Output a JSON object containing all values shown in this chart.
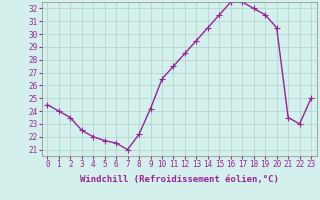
{
  "x": [
    0,
    1,
    2,
    3,
    4,
    5,
    6,
    7,
    8,
    9,
    10,
    11,
    12,
    13,
    14,
    15,
    16,
    17,
    18,
    19,
    20,
    21,
    22,
    23
  ],
  "y": [
    24.5,
    24.0,
    23.5,
    22.5,
    22.0,
    21.7,
    21.5,
    21.0,
    22.2,
    24.2,
    26.5,
    27.5,
    28.5,
    29.5,
    30.5,
    31.5,
    32.5,
    32.5,
    32.0,
    31.5,
    30.5,
    23.5,
    23.0,
    25.0
  ],
  "line_color": "#992299",
  "marker": "+",
  "marker_size": 4,
  "linewidth": 1.0,
  "xlabel": "Windchill (Refroidissement éolien,°C)",
  "xlabel_fontsize": 6.5,
  "ylim": [
    20.5,
    32.5
  ],
  "xlim": [
    -0.5,
    23.5
  ],
  "yticks": [
    21,
    22,
    23,
    24,
    25,
    26,
    27,
    28,
    29,
    30,
    31,
    32
  ],
  "xticks": [
    0,
    1,
    2,
    3,
    4,
    5,
    6,
    7,
    8,
    9,
    10,
    11,
    12,
    13,
    14,
    15,
    16,
    17,
    18,
    19,
    20,
    21,
    22,
    23
  ],
  "xtick_labels": [
    "0",
    "1",
    "2",
    "3",
    "4",
    "5",
    "6",
    "7",
    "8",
    "9",
    "10",
    "11",
    "12",
    "13",
    "14",
    "15",
    "16",
    "17",
    "18",
    "19",
    "20",
    "21",
    "22",
    "23"
  ],
  "ytick_labels": [
    "21",
    "22",
    "23",
    "24",
    "25",
    "26",
    "27",
    "28",
    "29",
    "30",
    "31",
    "32"
  ],
  "tick_fontsize": 5.5,
  "bg_color": "#d4f0ec",
  "grid_color": "#b0cfc8",
  "grid_linewidth": 0.5,
  "spine_color": "#888888"
}
